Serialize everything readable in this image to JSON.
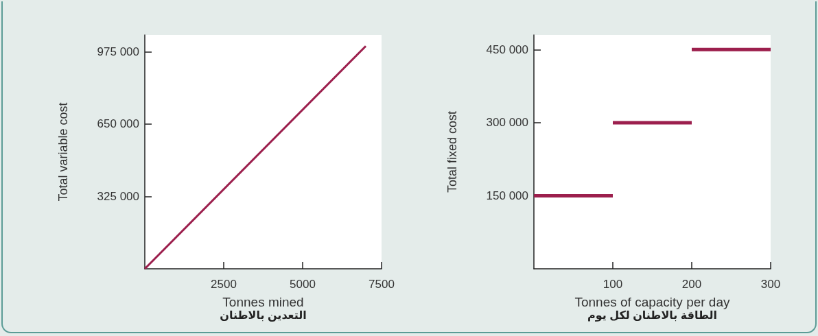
{
  "chart_data": [
    {
      "type": "line",
      "xlabel": "Tonnes mined\nالتعدين بالاطنان",
      "ylabel": "Total variable cost",
      "x": [
        0,
        7000
      ],
      "values": [
        0,
        1000000
      ],
      "color": "#9c1f4d",
      "xlim": [
        0,
        7500
      ],
      "ylim": [
        0,
        1050000
      ],
      "xticks": [
        2500,
        5000,
        7500
      ],
      "yticks": [
        {
          "value": 325000,
          "label": "325 000"
        },
        {
          "value": 650000,
          "label": "650 000"
        },
        {
          "value": 975000,
          "label": "975 000"
        }
      ]
    },
    {
      "type": "line",
      "xlabel": "Tonnes of capacity per day\nالطاقة بالاطنان لكل يوم",
      "ylabel": "Total fixed cost",
      "series": [
        {
          "color": "#9c1f4d",
          "x": [
            0,
            100
          ],
          "values": [
            150000,
            150000
          ]
        },
        {
          "color": "#9c1f4d",
          "x": [
            100,
            200
          ],
          "values": [
            300000,
            300000
          ]
        },
        {
          "color": "#9c1f4d",
          "x": [
            200,
            300
          ],
          "values": [
            450000,
            450000
          ]
        }
      ],
      "xlim": [
        0,
        300
      ],
      "ylim": [
        0,
        480000
      ],
      "xticks": [
        100,
        200,
        300
      ],
      "yticks": [
        {
          "value": 150000,
          "label": "150 000"
        },
        {
          "value": 300000,
          "label": "300 000"
        },
        {
          "value": 450000,
          "label": "450 000"
        }
      ]
    }
  ]
}
